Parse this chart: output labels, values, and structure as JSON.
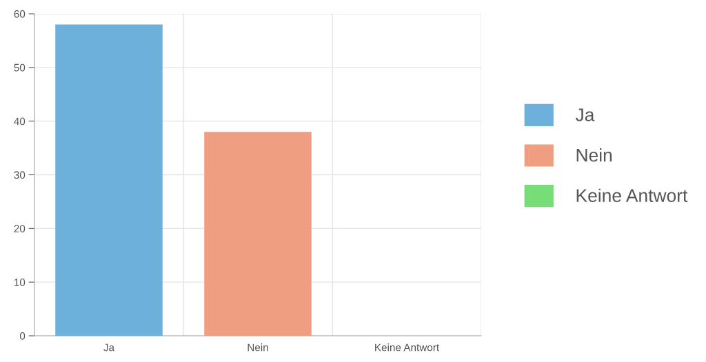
{
  "chart_data": {
    "type": "bar",
    "categories": [
      "Ja",
      "Nein",
      "Keine Antwort"
    ],
    "series": [
      {
        "name": "Ja",
        "color": "#6eb0dc",
        "values": [
          58,
          null,
          null
        ]
      },
      {
        "name": "Nein",
        "color": "#f09e82",
        "values": [
          null,
          38,
          null
        ]
      },
      {
        "name": "Keine Antwort",
        "color": "#77dd77",
        "values": [
          null,
          null,
          0
        ]
      }
    ],
    "stacked": true,
    "ylim": [
      0,
      60
    ],
    "yticks": [
      0,
      10,
      20,
      30,
      40,
      50,
      60
    ],
    "grid": true,
    "legend": "right"
  }
}
